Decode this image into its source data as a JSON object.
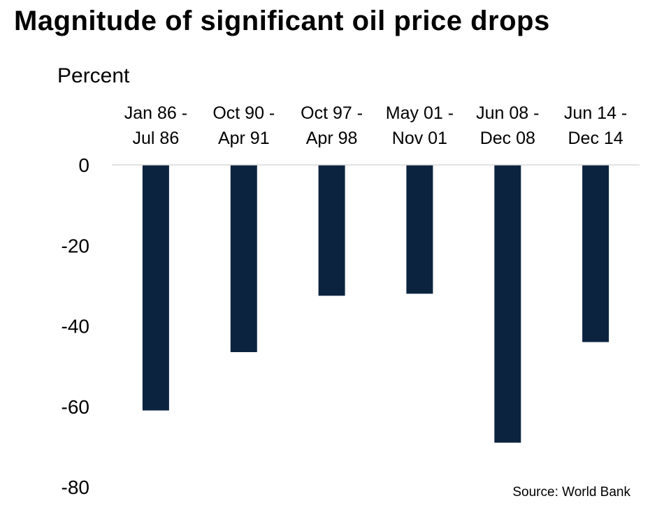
{
  "title": "Magnitude of significant oil price drops",
  "source": "Source: World Bank",
  "colors": {
    "bar": "#0c2340",
    "baseline": "#d9d9d9",
    "text": "#000000"
  },
  "chart_data": {
    "type": "bar",
    "title": "Magnitude of significant oil price drops",
    "ylabel": "Percent",
    "xlabel": "",
    "categories": [
      [
        "Jan 86 -",
        "Jul 86"
      ],
      [
        "Oct 90 -",
        "Apr 91"
      ],
      [
        "Oct 97 -",
        "Apr 98"
      ],
      [
        "May 01 -",
        "Nov 01"
      ],
      [
        "Jun 08 -",
        "Dec 08"
      ],
      [
        "Jun 14 -",
        "Dec 14"
      ]
    ],
    "values": [
      -61,
      -46.5,
      -32.5,
      -32,
      -69,
      -44
    ],
    "ylim": [
      -80,
      0
    ],
    "yticks": [
      0,
      -20,
      -40,
      -60,
      -80
    ],
    "ytick_labels": [
      "0",
      "-20",
      "-40",
      "-60",
      "-80"
    ],
    "category_axis_position": "top",
    "grid": false,
    "legend": "none"
  }
}
